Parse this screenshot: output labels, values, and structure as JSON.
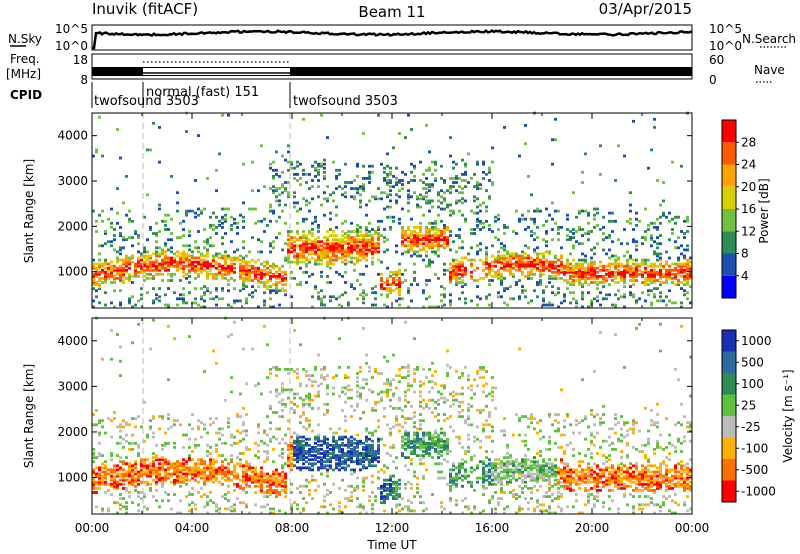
{
  "header": {
    "station": "Inuvik (fitACF)",
    "beam": "Beam 11",
    "date": "03/Apr/2015"
  },
  "panel_labels": {
    "nsky": "N.Sky",
    "freq": "Freq.",
    "freq_unit": "[MHz]",
    "cpid": "CPID",
    "nsearch": "N.Search",
    "nave": "Nave"
  },
  "noise_axis": {
    "left_top": "10^5",
    "left_bottom": "10^0",
    "right_top": "10^5",
    "right_bottom": "10^0"
  },
  "freq_axis": {
    "left_top": "18",
    "left_bottom": "8",
    "right_top": "60",
    "right_bottom": "0"
  },
  "cpid_segments": [
    {
      "label": "twofsound 3503",
      "start_h": 0.0,
      "end_h": 1.9,
      "row": 2
    },
    {
      "label": "normal (fast) 151",
      "start_h": 1.9,
      "end_h": 8.0,
      "row": 1
    },
    {
      "label": "twofsound 3503",
      "start_h": 8.0,
      "end_h": 24.0,
      "row": 2
    }
  ],
  "chart_data": [
    {
      "type": "heatmap",
      "ylabel": "Slant Range [km]",
      "xlabel": "",
      "ylim": [
        200,
        4500
      ],
      "yticks": [
        "1000",
        "2000",
        "3000",
        "4000"
      ],
      "colorbar_label": "Power [dB]",
      "colorbar_ticks": [
        "4",
        "8",
        "12",
        "16",
        "20",
        "24",
        "28"
      ],
      "colorbar_range": [
        0,
        32
      ],
      "colors": [
        "#0000ff",
        "#1c4fb0",
        "#2e8b57",
        "#6fc040",
        "#d8d000",
        "#ffa500",
        "#ff5a00",
        "#ff0000"
      ]
    },
    {
      "type": "heatmap",
      "ylabel": "Slant Range [km]",
      "xlabel": "Time UT",
      "ylim": [
        200,
        4500
      ],
      "yticks": [
        "1000",
        "2000",
        "3000",
        "4000"
      ],
      "xticks": [
        "00:00",
        "04:00",
        "08:00",
        "12:00",
        "16:00",
        "20:00",
        "00:00"
      ],
      "colorbar_label": "Velocity [m s⁻¹]",
      "colorbar_ticks": [
        "1000",
        "500",
        "100",
        "25",
        "-25",
        "-100",
        "-500",
        "-1000"
      ],
      "colors": [
        "#1a2fb8",
        "#2c6aa0",
        "#2e8b57",
        "#60c040",
        "#bcbcbc",
        "#ffb000",
        "#ff7000",
        "#ff0000"
      ]
    }
  ]
}
